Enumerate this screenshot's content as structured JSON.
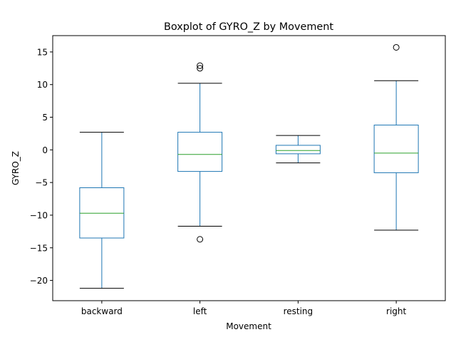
{
  "chart_data": {
    "type": "boxplot",
    "title": "Boxplot of GYRO_Z by Movement",
    "xlabel": "Movement",
    "ylabel": "GYRO_Z",
    "ylim": [
      -23.1,
      17.5
    ],
    "yticks": [
      15,
      10,
      5,
      0,
      -5,
      -10,
      -15,
      -20
    ],
    "ytick_labels": [
      "15",
      "10",
      "5",
      "0",
      "−5",
      "−10",
      "−15",
      "−20"
    ],
    "grid": false,
    "categories": [
      "backward",
      "left",
      "resting",
      "right"
    ],
    "boxes": [
      {
        "category": "backward",
        "whisker_low": -21.2,
        "q1": -13.5,
        "median": -9.7,
        "q3": -5.8,
        "whisker_high": 2.7,
        "outliers": []
      },
      {
        "category": "left",
        "whisker_low": -11.7,
        "q1": -3.3,
        "median": -0.7,
        "q3": 2.7,
        "whisker_high": 10.2,
        "outliers": [
          12.5,
          12.9,
          -13.7
        ]
      },
      {
        "category": "resting",
        "whisker_low": -2.0,
        "q1": -0.6,
        "median": -0.1,
        "q3": 0.7,
        "whisker_high": 2.2,
        "outliers": []
      },
      {
        "category": "right",
        "whisker_low": -12.3,
        "q1": -3.5,
        "median": -0.5,
        "q3": 3.8,
        "whisker_high": 10.6,
        "outliers": [
          15.7
        ]
      }
    ],
    "colors": {
      "box": "#1f77b4",
      "median": "#2ca02c",
      "whisker": "#000000",
      "outlier": "#000000"
    }
  }
}
